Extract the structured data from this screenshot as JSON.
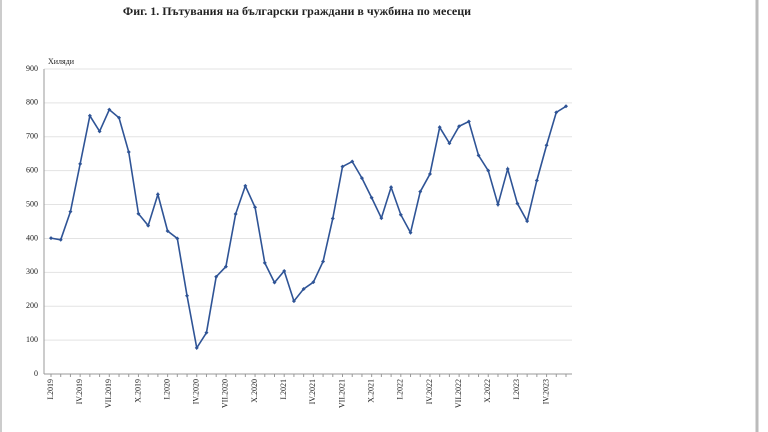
{
  "chart_data": {
    "type": "line",
    "title": "Фиг. 1. Пътувания на български граждани в чужбина по месеци",
    "y_label": "Хиляди",
    "categories": [
      "I.2019",
      null,
      null,
      "IV.2019",
      null,
      null,
      "VII.2019",
      null,
      null,
      "X.2019",
      null,
      null,
      "I.2020",
      null,
      null,
      "IV.2020",
      null,
      null,
      "VII.2020",
      null,
      null,
      "X.2020",
      null,
      null,
      "I.2021",
      null,
      null,
      "IV.2021",
      null,
      null,
      "VII.2021",
      null,
      null,
      "X.2021",
      null,
      null,
      "I.2022",
      null,
      null,
      "IV.2022",
      null,
      null,
      "VII.2022",
      null,
      null,
      "X.2022",
      null,
      null,
      "I.2023",
      null,
      null,
      "IV.2023",
      null,
      null
    ],
    "series": [
      {
        "name": "Пътувания",
        "color": "#2f5496",
        "values": [
          401,
          396,
          479,
          620,
          762,
          716,
          780,
          756,
          655,
          473,
          438,
          530,
          422,
          400,
          231,
          77,
          122,
          287,
          317,
          472,
          555,
          492,
          328,
          270,
          304,
          215,
          251,
          271,
          332,
          459,
          612,
          627,
          578,
          520,
          460,
          551,
          470,
          417,
          538,
          590,
          728,
          681,
          731,
          745,
          645,
          600,
          500,
          605,
          503,
          451,
          571,
          675,
          772,
          790
        ]
      }
    ],
    "ylim": [
      0,
      900
    ],
    "yticks": [
      0,
      100,
      200,
      300,
      400,
      500,
      600,
      700,
      800,
      900
    ],
    "grid": true
  }
}
